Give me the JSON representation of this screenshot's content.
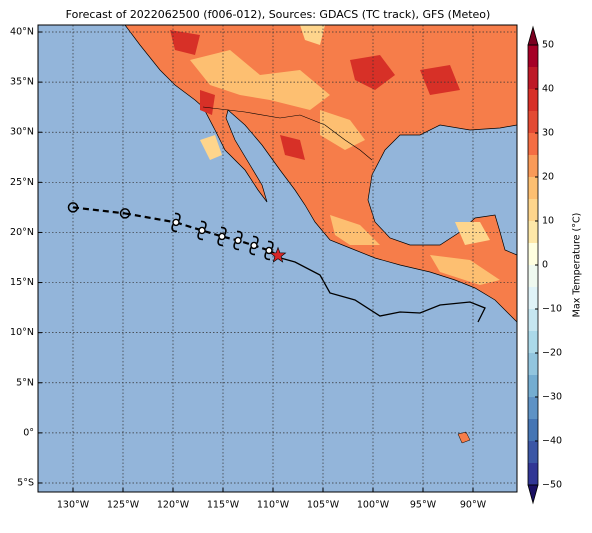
{
  "chart_data": {
    "type": "map",
    "title": "Forecast of 2022062500 (f006-012), Sources: GDACS (TC track), GFS (Meteo)",
    "xlim": [
      -133.5,
      -85.6
    ],
    "ylim": [
      -5.9,
      40.7
    ],
    "xticks": [
      {
        "value": -130,
        "label": "130°W"
      },
      {
        "value": -125,
        "label": "125°W"
      },
      {
        "value": -120,
        "label": "120°W"
      },
      {
        "value": -115,
        "label": "115°W"
      },
      {
        "value": -110,
        "label": "110°W"
      },
      {
        "value": -105,
        "label": "105°W"
      },
      {
        "value": -100,
        "label": "100°W"
      },
      {
        "value": -95,
        "label": "95°W"
      },
      {
        "value": -90,
        "label": "90°W"
      }
    ],
    "yticks": [
      {
        "value": -5,
        "label": "5°S"
      },
      {
        "value": 0,
        "label": "0°"
      },
      {
        "value": 5,
        "label": "5°N"
      },
      {
        "value": 10,
        "label": "10°N"
      },
      {
        "value": 15,
        "label": "15°N"
      },
      {
        "value": 20,
        "label": "20°N"
      },
      {
        "value": 25,
        "label": "25°N"
      },
      {
        "value": 30,
        "label": "30°N"
      },
      {
        "value": 35,
        "label": "35°N"
      },
      {
        "value": 40,
        "label": "40°N"
      }
    ],
    "grid": true,
    "past": {
      "x": [
        -130,
        -124.8
      ],
      "y": [
        22.5,
        21.9
      ]
    },
    "forecast": {
      "x": [
        -119.7,
        -117.1,
        -115.1,
        -113.5,
        -111.9,
        -110.4
      ],
      "y": [
        21.0,
        20.2,
        19.6,
        19.2,
        18.7,
        18.2
      ]
    },
    "current": {
      "x": -109.5,
      "y": 17.7,
      "color": "#d62728"
    },
    "colorbar": {
      "label": "Max Temperature (°C)",
      "lim": [
        -50,
        50
      ],
      "ticks": [
        {
          "value": -50,
          "label": "−50"
        },
        {
          "value": -40,
          "label": "−40"
        },
        {
          "value": -30,
          "label": "−30"
        },
        {
          "value": -20,
          "label": "−20"
        },
        {
          "value": -10,
          "label": "−10"
        },
        0,
        10,
        20,
        30,
        40,
        50
      ],
      "levels": [
        -50,
        -45,
        -40,
        -35,
        -30,
        -25,
        -20,
        -15,
        -10,
        -5,
        0,
        5,
        10,
        15,
        20,
        25,
        30,
        35,
        40,
        45,
        50
      ],
      "colors": [
        "#313695",
        "#3b56a5",
        "#4575b4",
        "#5e92c5",
        "#74add1",
        "#92c5de",
        "#abd9e9",
        "#c6e6f0",
        "#e0f3f8",
        "#eff9f0",
        "#ffffe0",
        "#fee8a8",
        "#fed58c",
        "#fdbf71",
        "#f99a58",
        "#f46d43",
        "#e34a33",
        "#d73027",
        "#be1927",
        "#a50026"
      ],
      "under_color": "#1a1063",
      "over_color": "#7a0020"
    }
  }
}
